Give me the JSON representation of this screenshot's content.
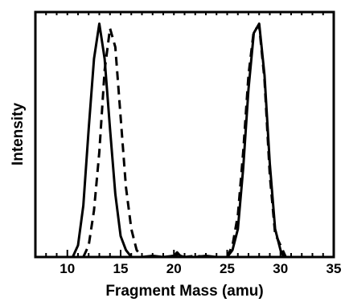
{
  "chart_data": {
    "type": "line",
    "title": "",
    "xlabel": "Fragment Mass (amu)",
    "ylabel": "Intensity",
    "xlim": [
      7,
      35
    ],
    "ylim": [
      0,
      1.05
    ],
    "x_ticks": [
      10,
      15,
      20,
      25,
      30,
      35
    ],
    "x_tick_labels": [
      "10",
      "15",
      "20",
      "25",
      "30",
      "35"
    ],
    "y_ticks_shown": false,
    "grid": false,
    "legend": "none",
    "series": [
      {
        "style": "solid",
        "color": "#000000",
        "x": [
          10.5,
          11.0,
          11.5,
          12.0,
          12.5,
          13.0,
          13.5,
          14.0,
          14.5,
          15.0,
          15.5,
          16.0,
          17.0,
          18.0,
          19.0,
          20.0,
          20.3,
          20.6,
          21.0,
          22.0,
          23.0,
          24.0,
          25.0,
          25.5,
          26.0,
          26.5,
          27.0,
          27.5,
          28.0,
          28.5,
          29.0,
          29.5,
          30.0,
          30.3
        ],
        "y": [
          0.0,
          0.05,
          0.22,
          0.55,
          0.85,
          1.0,
          0.85,
          0.55,
          0.27,
          0.09,
          0.03,
          0.0,
          0.0,
          0.005,
          0.0,
          0.005,
          0.02,
          0.005,
          0.0,
          0.0,
          0.005,
          0.0,
          0.0,
          0.03,
          0.12,
          0.38,
          0.72,
          0.96,
          1.0,
          0.78,
          0.4,
          0.12,
          0.03,
          0.0
        ]
      },
      {
        "style": "dashed",
        "color": "#000000",
        "x": [
          11.5,
          12.0,
          12.5,
          13.0,
          13.5,
          14.0,
          14.5,
          15.0,
          15.5,
          16.0,
          16.5,
          17.0,
          18.0,
          19.0,
          20.0,
          20.3,
          21.0,
          22.0,
          23.0,
          24.0,
          25.0,
          25.5,
          26.0,
          26.5,
          27.0,
          27.5,
          28.0,
          28.5,
          29.0,
          29.5,
          30.0,
          30.5
        ],
        "y": [
          0.0,
          0.05,
          0.2,
          0.45,
          0.8,
          0.98,
          0.9,
          0.6,
          0.3,
          0.12,
          0.03,
          0.0,
          0.0,
          0.0,
          0.005,
          0.01,
          0.0,
          0.005,
          0.0,
          0.0,
          0.0,
          0.05,
          0.18,
          0.45,
          0.78,
          0.97,
          0.99,
          0.76,
          0.35,
          0.1,
          0.05,
          0.0
        ]
      }
    ]
  }
}
